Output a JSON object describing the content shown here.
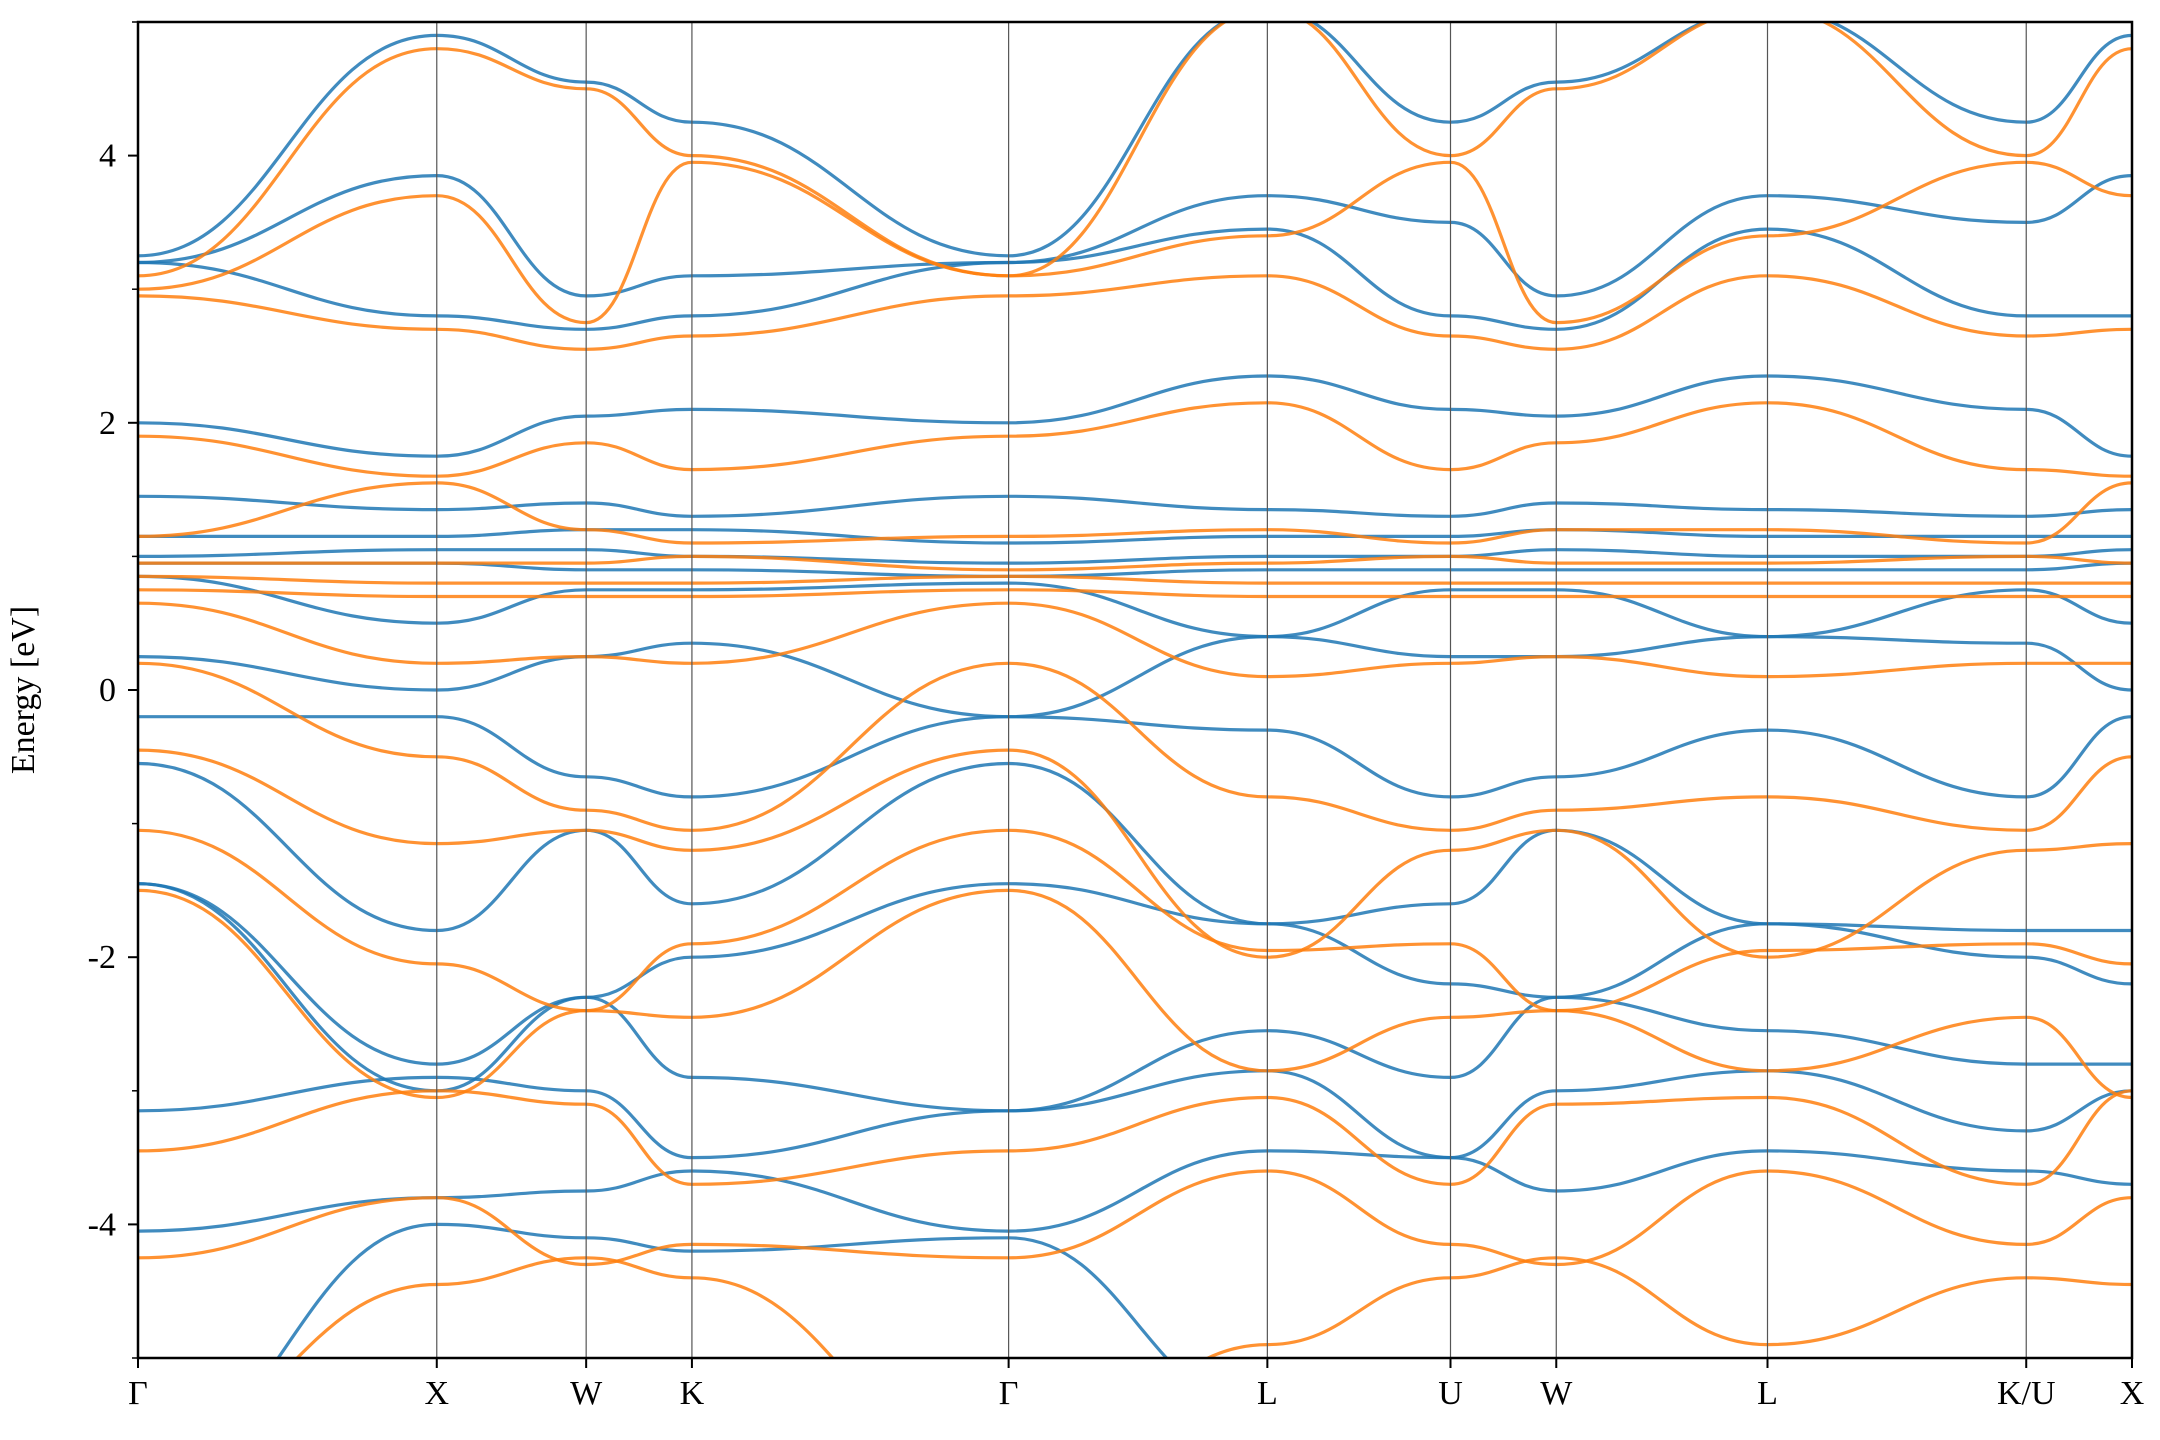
{
  "chart_data": {
    "type": "line",
    "title": "",
    "xlabel": "",
    "ylabel": "Energy [eV]",
    "ylim": [
      -5,
      5
    ],
    "y_ticks": [
      {
        "value": -4,
        "label": "-4"
      },
      {
        "value": -2,
        "label": "-2"
      },
      {
        "value": 0,
        "label": "0"
      },
      {
        "value": 2,
        "label": "2"
      },
      {
        "value": 4,
        "label": "4"
      }
    ],
    "y_minor_ticks": [
      -5,
      -3,
      -1,
      1,
      3,
      5
    ],
    "grid": false,
    "legend": "none",
    "k_path": [
      {
        "label": "Γ",
        "x": 0.0
      },
      {
        "label": "X",
        "x": 1.0
      },
      {
        "label": "W",
        "x": 1.5
      },
      {
        "label": "K",
        "x": 1.854
      },
      {
        "label": "Γ",
        "x": 2.914
      },
      {
        "label": "L",
        "x": 3.78
      },
      {
        "label": "U",
        "x": 4.393
      },
      {
        "label": "W",
        "x": 4.747
      },
      {
        "label": "L",
        "x": 5.454
      },
      {
        "label": "K/U",
        "x": 6.32
      },
      {
        "label": "X",
        "x": 6.674
      }
    ],
    "xlim": [
      0,
      6.674
    ],
    "series": [
      {
        "color": "#1f77b4",
        "bands": [
          [
            -5.8,
            -4.0,
            -4.1,
            -4.2,
            -4.1,
            -5.4,
            -5.3,
            -5.6,
            -5.2,
            -5.2,
            -5.6
          ],
          [
            -4.05,
            -3.8,
            -3.75,
            -3.6,
            -4.05,
            -3.45,
            -3.5,
            -3.75,
            -3.45,
            -3.6,
            -3.7
          ],
          [
            -3.15,
            -2.9,
            -3.0,
            -3.5,
            -3.15,
            -2.85,
            -3.5,
            -3.0,
            -2.85,
            -3.3,
            -3.0
          ],
          [
            -1.45,
            -3.0,
            -2.3,
            -2.9,
            -3.15,
            -2.55,
            -2.9,
            -2.3,
            -2.55,
            -2.8,
            -2.8
          ],
          [
            -1.45,
            -2.8,
            -2.3,
            -2.0,
            -1.45,
            -1.75,
            -2.2,
            -2.3,
            -1.75,
            -2.0,
            -2.2
          ],
          [
            -0.55,
            -1.8,
            -1.05,
            -1.6,
            -0.55,
            -1.75,
            -1.6,
            -1.05,
            -1.75,
            -1.8,
            -1.8
          ],
          [
            -0.2,
            -0.2,
            -0.65,
            -0.8,
            -0.2,
            -0.3,
            -0.8,
            -0.65,
            -0.3,
            -0.8,
            -0.2
          ],
          [
            0.25,
            0.0,
            0.25,
            0.35,
            -0.2,
            0.4,
            0.25,
            0.25,
            0.4,
            0.35,
            0.0
          ],
          [
            0.85,
            0.5,
            0.75,
            0.75,
            0.8,
            0.4,
            0.75,
            0.75,
            0.4,
            0.75,
            0.5
          ],
          [
            0.95,
            0.95,
            0.9,
            0.9,
            0.85,
            0.9,
            0.9,
            0.9,
            0.9,
            0.9,
            0.95
          ],
          [
            1.0,
            1.05,
            1.05,
            1.0,
            0.95,
            1.0,
            1.0,
            1.05,
            1.0,
            1.0,
            1.05
          ],
          [
            1.15,
            1.15,
            1.2,
            1.2,
            1.1,
            1.15,
            1.15,
            1.2,
            1.15,
            1.15,
            1.15
          ],
          [
            1.45,
            1.35,
            1.4,
            1.3,
            1.45,
            1.35,
            1.3,
            1.4,
            1.35,
            1.3,
            1.35
          ],
          [
            2.0,
            1.75,
            2.05,
            2.1,
            2.0,
            2.35,
            2.1,
            2.05,
            2.35,
            2.1,
            1.75
          ],
          [
            3.2,
            2.8,
            2.7,
            2.8,
            3.2,
            3.45,
            2.8,
            2.7,
            3.45,
            2.8,
            2.8
          ],
          [
            3.2,
            3.85,
            2.95,
            3.1,
            3.2,
            3.7,
            3.5,
            2.95,
            3.7,
            3.5,
            3.85
          ],
          [
            3.25,
            4.9,
            4.55,
            4.25,
            3.25,
            5.1,
            4.25,
            4.55,
            5.1,
            4.25,
            4.9
          ]
        ]
      },
      {
        "color": "#ff7f0e",
        "bands": [
          [
            -5.7,
            -4.45,
            -4.25,
            -4.4,
            -5.9,
            -4.9,
            -4.4,
            -4.25,
            -4.9,
            -4.4,
            -4.45
          ],
          [
            -4.25,
            -3.8,
            -4.3,
            -4.15,
            -4.25,
            -3.6,
            -4.15,
            -4.3,
            -3.6,
            -4.15,
            -3.8
          ],
          [
            -3.45,
            -3.0,
            -3.1,
            -3.7,
            -3.45,
            -3.05,
            -3.7,
            -3.1,
            -3.05,
            -3.7,
            -3.0
          ],
          [
            -1.5,
            -3.05,
            -2.4,
            -2.45,
            -1.5,
            -2.85,
            -2.45,
            -2.4,
            -2.85,
            -2.45,
            -3.05
          ],
          [
            -1.05,
            -2.05,
            -2.4,
            -1.9,
            -1.05,
            -1.95,
            -1.9,
            -2.4,
            -1.95,
            -1.9,
            -2.05
          ],
          [
            -0.45,
            -1.15,
            -1.05,
            -1.2,
            -0.45,
            -2.0,
            -1.2,
            -1.05,
            -2.0,
            -1.2,
            -1.15
          ],
          [
            0.2,
            -0.5,
            -0.9,
            -1.05,
            0.2,
            -0.8,
            -1.05,
            -0.9,
            -0.8,
            -1.05,
            -0.5
          ],
          [
            0.65,
            0.2,
            0.25,
            0.2,
            0.65,
            0.1,
            0.2,
            0.25,
            0.1,
            0.2,
            0.2
          ],
          [
            0.75,
            0.7,
            0.7,
            0.7,
            0.75,
            0.7,
            0.7,
            0.7,
            0.7,
            0.7,
            0.7
          ],
          [
            0.85,
            0.8,
            0.8,
            0.8,
            0.85,
            0.8,
            0.8,
            0.8,
            0.8,
            0.8,
            0.8
          ],
          [
            0.95,
            0.95,
            0.95,
            1.0,
            0.9,
            0.95,
            1.0,
            0.95,
            0.95,
            1.0,
            0.95
          ],
          [
            1.15,
            1.55,
            1.2,
            1.1,
            1.15,
            1.2,
            1.1,
            1.2,
            1.2,
            1.1,
            1.55
          ],
          [
            1.9,
            1.6,
            1.85,
            1.65,
            1.9,
            2.15,
            1.65,
            1.85,
            2.15,
            1.65,
            1.6
          ],
          [
            2.95,
            2.7,
            2.55,
            2.65,
            2.95,
            3.1,
            2.65,
            2.55,
            3.1,
            2.65,
            2.7
          ],
          [
            3.0,
            3.7,
            2.75,
            3.95,
            3.1,
            3.4,
            3.95,
            2.75,
            3.4,
            3.95,
            3.7
          ],
          [
            3.1,
            4.8,
            4.5,
            4.0,
            3.1,
            5.1,
            4.0,
            4.5,
            5.1,
            4.0,
            4.8
          ]
        ]
      }
    ]
  }
}
